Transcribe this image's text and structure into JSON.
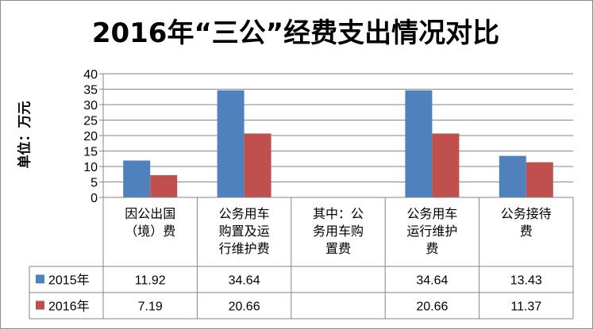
{
  "chart_data": {
    "type": "bar",
    "title": "2016年“三公”经费支出情况对比",
    "ylabel": "单位：万元",
    "xlabel": "",
    "ylim": [
      0,
      40
    ],
    "yticks": [
      0,
      5,
      10,
      15,
      20,
      25,
      30,
      35,
      40
    ],
    "grid": true,
    "legend": "data-table-left",
    "categories": [
      [
        "因公出国",
        "（境）费"
      ],
      [
        "公务用车",
        "购置及运",
        "行维护费"
      ],
      [
        "其中：公",
        "务用车购",
        "置费"
      ],
      [
        "公务用车",
        "运行维护",
        "费"
      ],
      [
        "公务接待",
        "费"
      ]
    ],
    "series": [
      {
        "name": "2015年",
        "color": "#4f81bd",
        "values": [
          11.92,
          34.64,
          null,
          34.64,
          13.43
        ],
        "labels": [
          "11.92",
          "34.64",
          "",
          "34.64",
          "13.43"
        ]
      },
      {
        "name": "2016年",
        "color": "#c0504d",
        "values": [
          7.19,
          20.66,
          null,
          20.66,
          11.37
        ],
        "labels": [
          "7.19",
          "20.66",
          "",
          "20.66",
          "11.37"
        ]
      }
    ]
  }
}
